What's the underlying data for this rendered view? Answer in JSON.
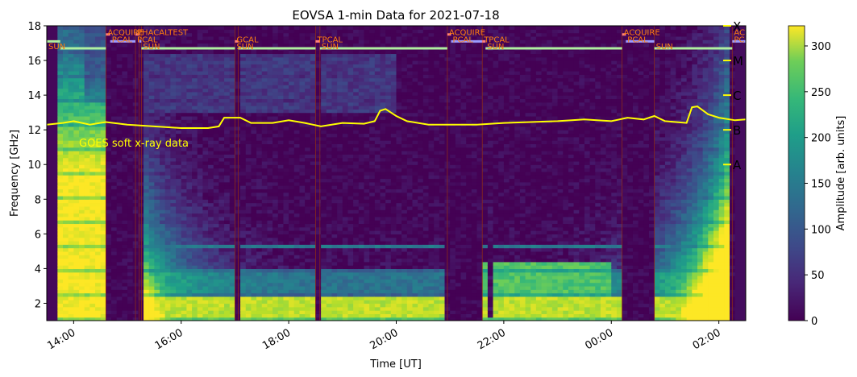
{
  "chart_data": {
    "type": "heatmap",
    "title": "EOVSA 1-min Data for 2021-07-18",
    "xlabel": "Time [UT]",
    "ylabel": "Frequency [GHz]",
    "colorbar_label": "Amplitude [arb. units]",
    "colormap": "viridis",
    "x_range_hours": [
      13.5,
      26.5
    ],
    "ylim": [
      1,
      18
    ],
    "clim": [
      0,
      322
    ],
    "x_ticks": [
      {
        "hour": 14,
        "label": "14:00"
      },
      {
        "hour": 16,
        "label": "16:00"
      },
      {
        "hour": 18,
        "label": "18:00"
      },
      {
        "hour": 20,
        "label": "20:00"
      },
      {
        "hour": 22,
        "label": "22:00"
      },
      {
        "hour": 24,
        "label": "00:00"
      },
      {
        "hour": 26,
        "label": "02:00"
      }
    ],
    "y_ticks": [
      2,
      4,
      6,
      8,
      10,
      12,
      14,
      16,
      18
    ],
    "colorbar_ticks": [
      0,
      50,
      100,
      150,
      200,
      250,
      300
    ],
    "scan_segments": [
      {
        "start": 13.5,
        "end": 13.75,
        "type": "SUN",
        "level": 17.1
      },
      {
        "start": 13.75,
        "end": 14.6,
        "type": "SUN",
        "level": 16.7
      },
      {
        "start": 14.6,
        "end": 14.68,
        "type": "ACQUIRE",
        "level": 17.5
      },
      {
        "start": 14.68,
        "end": 15.15,
        "type": "PCAL",
        "level": 17.1
      },
      {
        "start": 15.15,
        "end": 15.22,
        "type": "PHACALTEST",
        "level": 17.5
      },
      {
        "start": 15.22,
        "end": 15.26,
        "type": "PCAL",
        "level": 17.1
      },
      {
        "start": 15.26,
        "end": 17.0,
        "type": "SUN",
        "level": 16.7
      },
      {
        "start": 17.0,
        "end": 17.06,
        "type": "GCAL",
        "level": 17.1
      },
      {
        "start": 17.06,
        "end": 18.5,
        "type": "SUN",
        "level": 16.7
      },
      {
        "start": 18.5,
        "end": 18.58,
        "type": "TPCAL",
        "level": 17.1
      },
      {
        "start": 18.58,
        "end": 20.95,
        "type": "SUN",
        "level": 16.7
      },
      {
        "start": 20.95,
        "end": 21.02,
        "type": "ACQUIRE",
        "level": 17.5
      },
      {
        "start": 21.02,
        "end": 21.6,
        "type": "PCAL",
        "level": 17.1
      },
      {
        "start": 21.6,
        "end": 21.66,
        "type": "TPCAL",
        "level": 17.1
      },
      {
        "start": 21.66,
        "end": 24.2,
        "type": "SUN",
        "level": 16.7
      },
      {
        "start": 24.2,
        "end": 24.27,
        "type": "ACQUIRE",
        "level": 17.5
      },
      {
        "start": 24.27,
        "end": 24.8,
        "type": "PCAL",
        "level": 17.1
      },
      {
        "start": 24.8,
        "end": 26.25,
        "type": "SUN",
        "level": 16.7
      },
      {
        "start": 26.25,
        "end": 26.5,
        "type": "PC",
        "level": 17.1
      }
    ],
    "scan_labels": [
      {
        "hour": 13.5,
        "level": 16.75,
        "text": "SUN"
      },
      {
        "hour": 14.6,
        "level": 17.55,
        "text": "ACQUIRE"
      },
      {
        "hour": 14.68,
        "level": 17.15,
        "text": "PCAL"
      },
      {
        "hour": 15.15,
        "level": 17.55,
        "text": "PHACALTEST"
      },
      {
        "hour": 15.15,
        "level": 17.15,
        "text": "PCAL"
      },
      {
        "hour": 15.26,
        "level": 16.75,
        "text": "SUN"
      },
      {
        "hour": 17.0,
        "level": 17.15,
        "text": "GCAL"
      },
      {
        "hour": 17.0,
        "level": 16.75,
        "text": "SUN"
      },
      {
        "hour": 18.5,
        "level": 17.15,
        "text": "TPCAL"
      },
      {
        "hour": 18.58,
        "level": 16.75,
        "text": "SUN"
      },
      {
        "hour": 20.95,
        "level": 17.55,
        "text": "ACQUIRE"
      },
      {
        "hour": 21.02,
        "level": 17.15,
        "text": "PCAL"
      },
      {
        "hour": 21.6,
        "level": 17.15,
        "text": "TPCAL"
      },
      {
        "hour": 21.66,
        "level": 16.75,
        "text": "SUN"
      },
      {
        "hour": 24.2,
        "level": 17.55,
        "text": "ACQUIRE"
      },
      {
        "hour": 24.27,
        "level": 17.15,
        "text": "PCAL"
      },
      {
        "hour": 24.8,
        "level": 16.75,
        "text": "SUN"
      },
      {
        "hour": 26.25,
        "level": 17.55,
        "text": "AC"
      },
      {
        "hour": 26.25,
        "level": 17.15,
        "text": "PC"
      }
    ],
    "dark_bands": [
      [
        14.6,
        15.15
      ],
      [
        15.22,
        15.26
      ],
      [
        17.0,
        17.06
      ],
      [
        18.5,
        18.58
      ],
      [
        20.95,
        21.6
      ],
      [
        24.2,
        24.8
      ],
      [
        26.25,
        26.5
      ]
    ],
    "goes_series": {
      "name": "GOES soft x-ray data",
      "color": "#ffff00",
      "points": [
        [
          13.5,
          12.3
        ],
        [
          13.8,
          12.4
        ],
        [
          14.0,
          12.5
        ],
        [
          14.3,
          12.3
        ],
        [
          14.6,
          12.45
        ],
        [
          15.0,
          12.3
        ],
        [
          15.5,
          12.2
        ],
        [
          16.0,
          12.1
        ],
        [
          16.5,
          12.1
        ],
        [
          16.7,
          12.2
        ],
        [
          16.8,
          12.7
        ],
        [
          17.1,
          12.7
        ],
        [
          17.3,
          12.4
        ],
        [
          17.7,
          12.4
        ],
        [
          18.0,
          12.55
        ],
        [
          18.3,
          12.4
        ],
        [
          18.6,
          12.2
        ],
        [
          19.0,
          12.4
        ],
        [
          19.4,
          12.35
        ],
        [
          19.6,
          12.5
        ],
        [
          19.7,
          13.1
        ],
        [
          19.8,
          13.2
        ],
        [
          20.0,
          12.8
        ],
        [
          20.2,
          12.5
        ],
        [
          20.6,
          12.3
        ],
        [
          21.0,
          12.3
        ],
        [
          21.5,
          12.3
        ],
        [
          22.0,
          12.4
        ],
        [
          22.5,
          12.45
        ],
        [
          23.0,
          12.5
        ],
        [
          23.5,
          12.6
        ],
        [
          24.0,
          12.5
        ],
        [
          24.3,
          12.7
        ],
        [
          24.6,
          12.6
        ],
        [
          24.8,
          12.8
        ],
        [
          25.0,
          12.5
        ],
        [
          25.4,
          12.4
        ],
        [
          25.5,
          13.3
        ],
        [
          25.6,
          13.35
        ],
        [
          25.8,
          12.9
        ],
        [
          26.0,
          12.7
        ],
        [
          26.3,
          12.55
        ],
        [
          26.5,
          12.6
        ]
      ]
    },
    "goes_classes": [
      {
        "label": "X",
        "level": 18.0
      },
      {
        "label": "M",
        "level": 16.0
      },
      {
        "label": "C",
        "level": 14.0
      },
      {
        "label": "B",
        "level": 12.0
      },
      {
        "label": "A",
        "level": 10.0
      }
    ]
  }
}
